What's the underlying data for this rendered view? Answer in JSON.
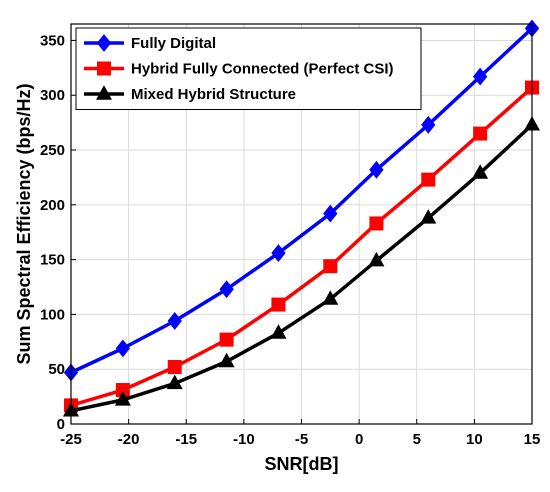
{
  "chart_data": {
    "type": "line",
    "title": "",
    "xlabel": "SNR[dB]",
    "ylabel": "Sum Spectral Efficiency (bps/Hz)",
    "xlim": [
      -25,
      15
    ],
    "ylim": [
      0,
      365
    ],
    "x_ticks": [
      -25,
      -20,
      -15,
      -10,
      -5,
      0,
      5,
      10,
      15
    ],
    "y_ticks": [
      0,
      50,
      100,
      150,
      200,
      250,
      300,
      350
    ],
    "grid": true,
    "legend_position": "top-left",
    "x": [
      -25,
      -20.5,
      -16,
      -11.5,
      -7,
      -2.5,
      1.5,
      6,
      10.5,
      15
    ],
    "series": [
      {
        "name": "Fully Digital",
        "color": "#0000ff",
        "marker": "diamond",
        "values": [
          47,
          69,
          94,
          123,
          156,
          192,
          232,
          273,
          317,
          361
        ]
      },
      {
        "name": "Hybrid Fully Connected (Perfect CSI)",
        "color": "#ff0000",
        "marker": "square",
        "values": [
          17,
          31,
          52,
          77,
          109,
          144,
          183,
          223,
          265,
          307
        ]
      },
      {
        "name": "Mixed Hybrid Structure",
        "color": "#000000",
        "marker": "triangle",
        "values": [
          12,
          22,
          37,
          57,
          83,
          114,
          149,
          188,
          229,
          273
        ]
      }
    ]
  }
}
